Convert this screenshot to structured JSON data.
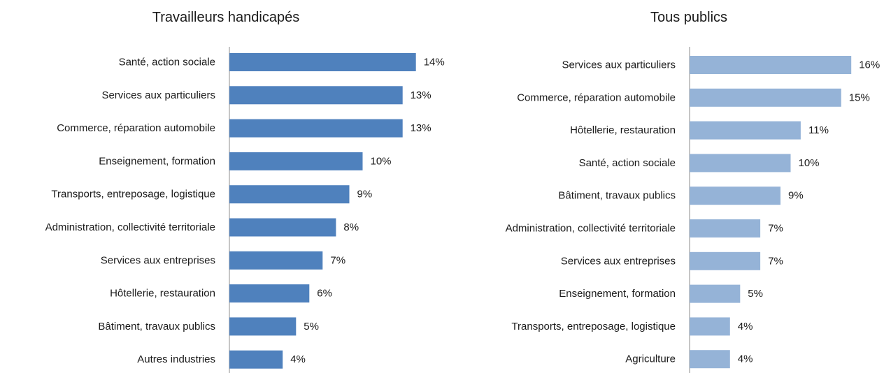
{
  "chart_data": [
    {
      "type": "bar",
      "orientation": "horizontal",
      "title": "Travailleurs handicapés",
      "color": "#4f81bd",
      "categories": [
        "Santé, action sociale",
        "Services aux particuliers",
        "Commerce, réparation automobile",
        "Enseignement, formation",
        "Transports, entreposage, logistique",
        "Administration, collectivité territoriale",
        "Services aux entreprises",
        "Hôtellerie, restauration",
        "Bâtiment, travaux publics",
        "Autres industries"
      ],
      "values": [
        14,
        13,
        13,
        10,
        9,
        8,
        7,
        6,
        5,
        4
      ],
      "value_labels": [
        "14%",
        "13%",
        "13%",
        "10%",
        "9%",
        "8%",
        "7%",
        "6%",
        "5%",
        "4%"
      ],
      "unit": "%",
      "grid": false,
      "legend": "none"
    },
    {
      "type": "bar",
      "orientation": "horizontal",
      "title": "Tous publics",
      "color": "#95b3d7",
      "categories": [
        "Services aux particuliers",
        "Commerce, réparation automobile",
        "Hôtellerie, restauration",
        "Santé, action sociale",
        "Bâtiment, travaux publics",
        "Administration, collectivité territoriale",
        "Services aux entreprises",
        "Enseignement, formation",
        "Transports, entreposage, logistique",
        "Agriculture"
      ],
      "values": [
        16,
        15,
        11,
        10,
        9,
        7,
        7,
        5,
        4,
        4
      ],
      "value_labels": [
        "16%",
        "15%",
        "11%",
        "10%",
        "9%",
        "7%",
        "7%",
        "5%",
        "4%",
        "4%"
      ],
      "unit": "%",
      "grid": false,
      "legend": "none"
    }
  ]
}
